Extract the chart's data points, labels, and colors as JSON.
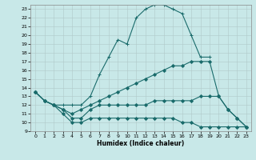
{
  "xlabel": "Humidex (Indice chaleur)",
  "xlim": [
    -0.5,
    23.5
  ],
  "ylim": [
    9,
    23.5
  ],
  "yticks": [
    9,
    10,
    11,
    12,
    13,
    14,
    15,
    16,
    17,
    18,
    19,
    20,
    21,
    22,
    23
  ],
  "xticks": [
    0,
    1,
    2,
    3,
    4,
    5,
    6,
    7,
    8,
    9,
    10,
    11,
    12,
    13,
    14,
    15,
    16,
    17,
    18,
    19,
    20,
    21,
    22,
    23
  ],
  "background_color": "#c8e8e8",
  "line_color": "#1a6b6b",
  "grid_color": "#b0c8c8",
  "lines": [
    {
      "x": [
        0,
        1,
        2,
        3,
        4,
        5,
        6,
        7,
        8,
        9,
        10,
        11,
        12,
        13,
        14,
        15,
        16,
        17,
        18,
        19
      ],
      "y": [
        13.5,
        12.5,
        12.0,
        12.0,
        12.0,
        12.0,
        13.0,
        15.5,
        17.5,
        19.5,
        19.0,
        22.0,
        23.0,
        23.5,
        23.5,
        23.0,
        22.5,
        20.0,
        17.5,
        17.5
      ],
      "marker": "+"
    },
    {
      "x": [
        0,
        1,
        2,
        3,
        4,
        5,
        6,
        7,
        8,
        9,
        10,
        11,
        12,
        13,
        14,
        15,
        16,
        17,
        18,
        19,
        20,
        21,
        22,
        23
      ],
      "y": [
        13.5,
        12.5,
        12.0,
        11.5,
        11.0,
        11.5,
        12.0,
        12.5,
        13.0,
        13.5,
        14.0,
        14.5,
        15.0,
        15.5,
        16.0,
        16.5,
        16.5,
        17.0,
        17.0,
        17.0,
        13.0,
        11.5,
        10.5,
        9.5
      ],
      "marker": "D"
    },
    {
      "x": [
        0,
        1,
        2,
        3,
        4,
        5,
        6,
        7,
        8,
        9,
        10,
        11,
        12,
        13,
        14,
        15,
        16,
        17,
        18,
        19,
        20,
        21,
        22,
        23
      ],
      "y": [
        13.5,
        12.5,
        12.0,
        11.5,
        10.5,
        10.5,
        11.5,
        12.0,
        12.0,
        12.0,
        12.0,
        12.0,
        12.0,
        12.5,
        12.5,
        12.5,
        12.5,
        12.5,
        13.0,
        13.0,
        13.0,
        11.5,
        10.5,
        9.5
      ],
      "marker": "D"
    },
    {
      "x": [
        0,
        1,
        2,
        3,
        4,
        5,
        6,
        7,
        8,
        9,
        10,
        11,
        12,
        13,
        14,
        15,
        16,
        17,
        18,
        19,
        20,
        21,
        22,
        23
      ],
      "y": [
        13.5,
        12.5,
        12.0,
        11.0,
        10.0,
        10.0,
        10.5,
        10.5,
        10.5,
        10.5,
        10.5,
        10.5,
        10.5,
        10.5,
        10.5,
        10.5,
        10.0,
        10.0,
        9.5,
        9.5,
        9.5,
        9.5,
        9.5,
        9.5
      ],
      "marker": "D"
    }
  ]
}
